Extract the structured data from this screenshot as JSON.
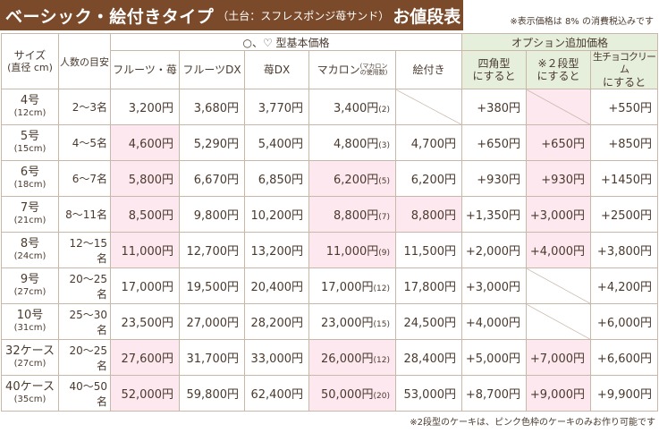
{
  "title": {
    "main": "ベーシック・絵付きタイプ",
    "sub": "（土台：スフレスポンジ苺サンド）",
    "end": "お値段表"
  },
  "tax_note": "※表示価格は 8% の消費税込みです",
  "footer_note": "※2段型のケーキは、ピンク色枠のケーキのみお作り可能です",
  "headers": {
    "size": "サイズ",
    "size_sub": "(直径 cm)",
    "people": "人数の目安",
    "basic_group": "○、♡ 型基本価格",
    "option_group": "オプション追加価格",
    "fruits_ichigo": "フルーツ・苺",
    "fruits_dx": "フルーツDX",
    "ichigo_dx": "苺DX",
    "macaron": "マカロン",
    "macaron_note1": "マカロン",
    "macaron_note2": "の使用数",
    "etsuki": "絵付き",
    "square_1": "四角型",
    "square_2": "にすると",
    "twotier_1": "※２段型",
    "twotier_2": "にすると",
    "choco_1": "生チョコクリーム",
    "choco_2": "にすると"
  },
  "rows": [
    {
      "size": "4号",
      "cm": "(12cm)",
      "people": "2〜3名",
      "fi": "3,200円",
      "fdx": "3,680円",
      "idx": "3,770円",
      "mac": "3,400円",
      "macn": "(2)",
      "etsuki": "",
      "sq": "+380円",
      "two": "",
      "choco": "+550円"
    },
    {
      "size": "5号",
      "cm": "(15cm)",
      "people": "4〜5名",
      "fi": "4,600円",
      "fdx": "5,290円",
      "idx": "5,400円",
      "mac": "4,800円",
      "macn": "(3)",
      "etsuki": "4,700円",
      "sq": "+650円",
      "two": "+650円",
      "choco": "+850円"
    },
    {
      "size": "6号",
      "cm": "(18cm)",
      "people": "6〜7名",
      "fi": "5,800円",
      "fdx": "6,670円",
      "idx": "6,850円",
      "mac": "6,200円",
      "macn": "(5)",
      "etsuki": "6,200円",
      "sq": "+930円",
      "two": "+930円",
      "choco": "+1450円"
    },
    {
      "size": "7号",
      "cm": "(21cm)",
      "people": "8〜11名",
      "fi": "8,500円",
      "fdx": "9,800円",
      "idx": "10,200円",
      "mac": "8,800円",
      "macn": "(7)",
      "etsuki": "8,800円",
      "sq": "+1,350円",
      "two": "+3,000円",
      "choco": "+2500円"
    },
    {
      "size": "8号",
      "cm": "(24cm)",
      "people": "12〜15名",
      "fi": "11,000円",
      "fdx": "12,700円",
      "idx": "13,200円",
      "mac": "11,000円",
      "macn": "(9)",
      "etsuki": "11,500円",
      "sq": "+2,000円",
      "two": "+4,000円",
      "choco": "+3,800円"
    },
    {
      "size": "9号",
      "cm": "(27cm)",
      "people": "20〜25名",
      "fi": "17,000円",
      "fdx": "19,500円",
      "idx": "20,400円",
      "mac": "17,000円",
      "macn": "(12)",
      "etsuki": "17,800円",
      "sq": "+3,000円",
      "two": "",
      "choco": "+4,200円"
    },
    {
      "size": "10号",
      "cm": "(31cm)",
      "people": "25〜30名",
      "fi": "23,500円",
      "fdx": "27,000円",
      "idx": "28,200円",
      "mac": "23,000円",
      "macn": "(15)",
      "etsuki": "24,500円",
      "sq": "+4,000円",
      "two": "",
      "choco": "+6,000円"
    },
    {
      "size": "32ケース",
      "cm": "(27cm)",
      "people": "20〜25名",
      "fi": "27,600円",
      "fdx": "31,700円",
      "idx": "33,000円",
      "mac": "26,000円",
      "macn": "(12)",
      "etsuki": "28,400円",
      "sq": "+5,000円",
      "two": "+7,000円",
      "choco": "+6,600円"
    },
    {
      "size": "40ケース",
      "cm": "(35cm)",
      "people": "40〜50名",
      "fi": "52,000円",
      "fdx": "59,800円",
      "idx": "62,400円",
      "mac": "50,000円",
      "macn": "(20)",
      "etsuki": "53,000円",
      "sq": "+8,700円",
      "two": "+9,000円",
      "choco": "+9,900円"
    }
  ]
}
